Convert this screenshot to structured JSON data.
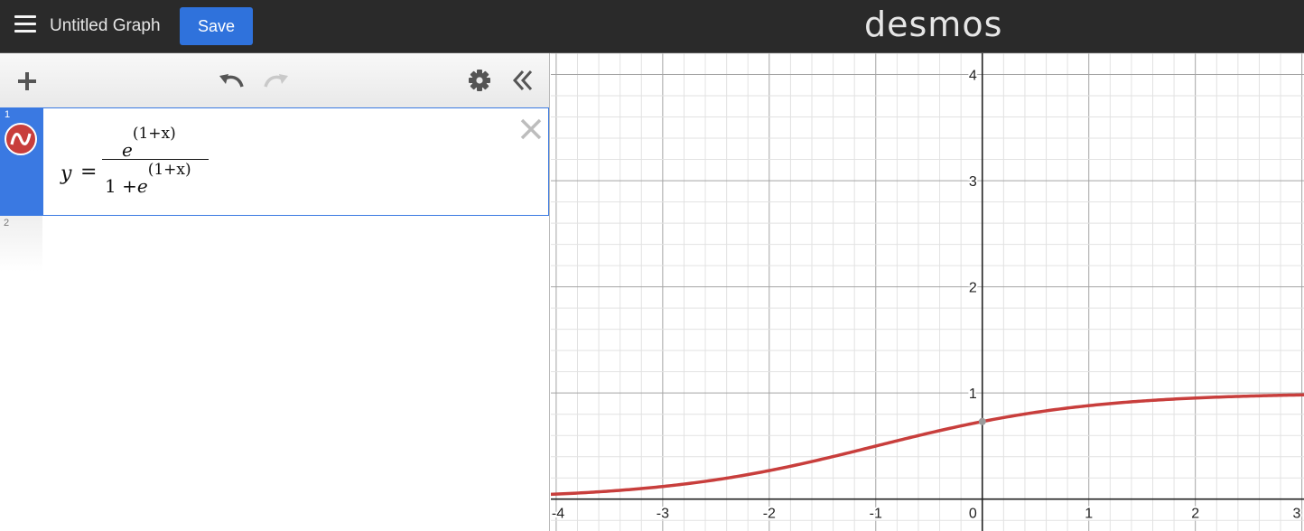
{
  "header": {
    "title": "Untitled Graph",
    "save_label": "Save",
    "logo_text": "desmos",
    "background_color": "#2a2a2a",
    "save_color": "#2f72dc"
  },
  "toolbar": {
    "add_icon": "plus-icon",
    "undo_icon": "undo-icon",
    "redo_icon": "redo-icon",
    "settings_icon": "gear-icon",
    "collapse_icon": "double-chevron-left-icon"
  },
  "expressions": [
    {
      "index": "1",
      "latex": "y=\\frac{e^{(1+x)}}{1+e^{(1+x)}}",
      "lhs": "y",
      "equals": "=",
      "numerator_base": "e",
      "exponent": "(1+x)",
      "denominator_prefix": "1 + ",
      "denominator_base": "e",
      "color": "#c83e3c",
      "selected": true
    },
    {
      "index": "2",
      "latex": "",
      "selected": false
    }
  ],
  "graph": {
    "x_range": [
      -4.05,
      3.02
    ],
    "y_range": [
      -0.3,
      4.2
    ],
    "x_ticks": [
      "-4",
      "-3",
      "-2",
      "-1",
      "1",
      "2",
      "3"
    ],
    "y_ticks": [
      "1",
      "2",
      "3",
      "4"
    ],
    "origin_label": "0",
    "grid": true,
    "minor_divisions": 5,
    "curve_color": "#c83e3c",
    "highlighted_point": {
      "x": 0,
      "y": 0.731
    }
  }
}
